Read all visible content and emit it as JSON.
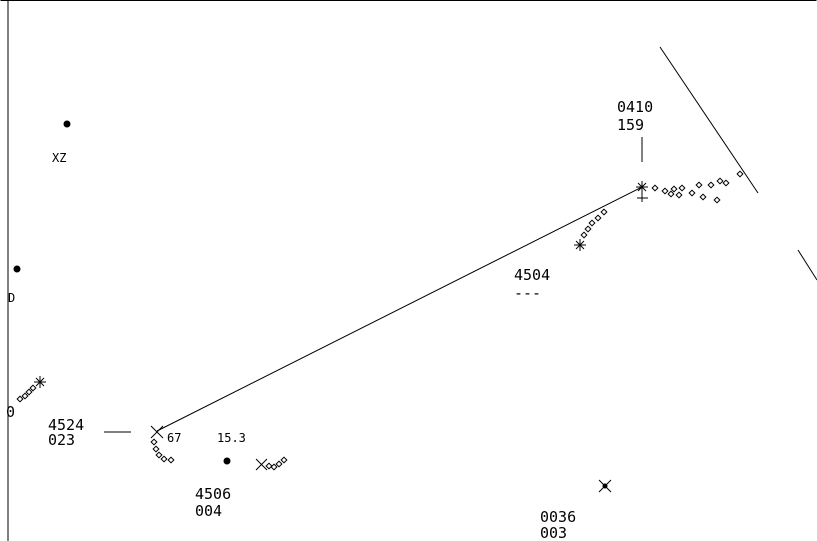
{
  "colors": {
    "background": "#ffffff",
    "ink": "#000000"
  },
  "fixes": [
    {
      "id": "xz",
      "label": "XZ"
    },
    {
      "id": "cut-left",
      "label": "D"
    }
  ],
  "aircraft": [
    {
      "id": "track-0410",
      "line1": "0410",
      "line2": "159",
      "target_icon": "asterisk-target-icon",
      "history_icon": "diamond-trail-icon"
    },
    {
      "id": "track-4504",
      "line1": "4504",
      "line2": "---",
      "target_icon": "asterisk-target-icon",
      "history_icon": "diamond-trail-icon"
    },
    {
      "id": "track-4524",
      "line1": "4524",
      "line2": "023",
      "target_icon": "x-target-icon",
      "history_icon": "diamond-trail-icon",
      "extra": "67"
    },
    {
      "id": "track-4506",
      "line1": "4506",
      "line2": "004",
      "target_icon": "x-target-icon",
      "history_icon": "diamond-trail-icon",
      "extra": "15.3"
    },
    {
      "id": "track-0036",
      "line1": "0036",
      "line2": "003",
      "target_icon": "x-target-icon"
    },
    {
      "id": "track-left-edge",
      "line1": "0",
      "target_icon": "asterisk-target-icon",
      "history_icon": "diamond-trail-icon"
    }
  ]
}
